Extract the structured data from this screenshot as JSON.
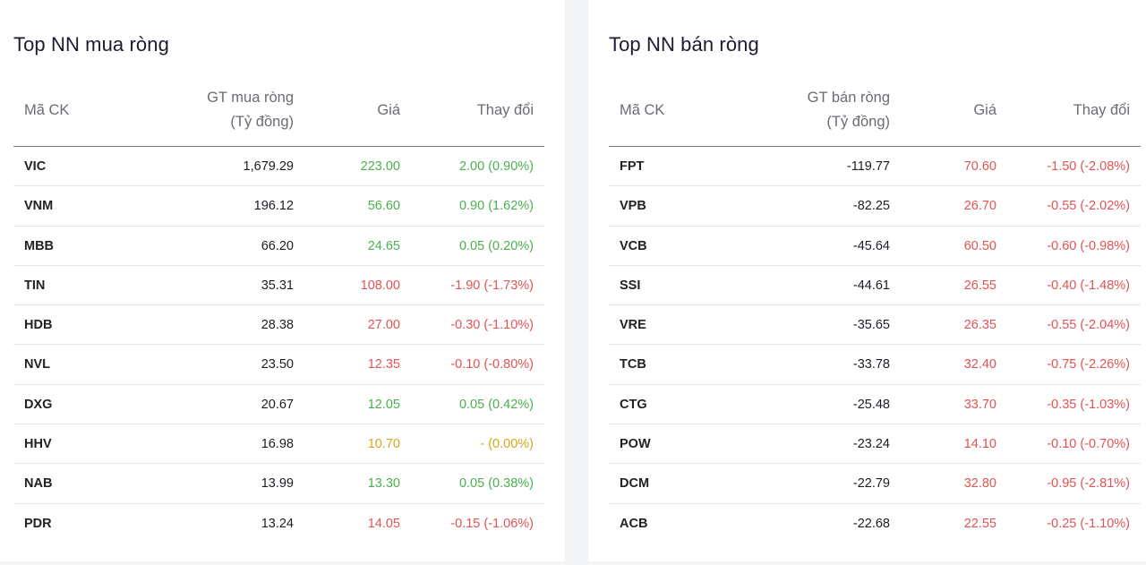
{
  "colors": {
    "up": "#4caf50",
    "down": "#e25353",
    "ref": "#d4a81a"
  },
  "buy": {
    "title": "Top NN mua ròng",
    "headers": {
      "code": "Mã CK",
      "value": "GT mua ròng\n(Tỷ đồng)",
      "price": "Giá",
      "change": "Thay đổi"
    },
    "rows": [
      {
        "code": "VIC",
        "value": "1,679.29",
        "price": "223.00",
        "change": "2.00 (0.90%)",
        "trend": "up"
      },
      {
        "code": "VNM",
        "value": "196.12",
        "price": "56.60",
        "change": "0.90 (1.62%)",
        "trend": "up"
      },
      {
        "code": "MBB",
        "value": "66.20",
        "price": "24.65",
        "change": "0.05 (0.20%)",
        "trend": "up"
      },
      {
        "code": "TIN",
        "value": "35.31",
        "price": "108.00",
        "change": "-1.90 (-1.73%)",
        "trend": "down"
      },
      {
        "code": "HDB",
        "value": "28.38",
        "price": "27.00",
        "change": "-0.30 (-1.10%)",
        "trend": "down"
      },
      {
        "code": "NVL",
        "value": "23.50",
        "price": "12.35",
        "change": "-0.10 (-0.80%)",
        "trend": "down"
      },
      {
        "code": "DXG",
        "value": "20.67",
        "price": "12.05",
        "change": "0.05 (0.42%)",
        "trend": "up"
      },
      {
        "code": "HHV",
        "value": "16.98",
        "price": "10.70",
        "change": "- (0.00%)",
        "trend": "ref"
      },
      {
        "code": "NAB",
        "value": "13.99",
        "price": "13.30",
        "change": "0.05 (0.38%)",
        "trend": "up"
      },
      {
        "code": "PDR",
        "value": "13.24",
        "price": "14.05",
        "change": "-0.15 (-1.06%)",
        "trend": "down"
      }
    ]
  },
  "sell": {
    "title": "Top NN bán ròng",
    "headers": {
      "code": "Mã CK",
      "value": "GT bán ròng\n(Tỷ đồng)",
      "price": "Giá",
      "change": "Thay đổi"
    },
    "rows": [
      {
        "code": "FPT",
        "value": "-119.77",
        "price": "70.60",
        "change": "-1.50 (-2.08%)",
        "trend": "down"
      },
      {
        "code": "VPB",
        "value": "-82.25",
        "price": "26.70",
        "change": "-0.55 (-2.02%)",
        "trend": "down"
      },
      {
        "code": "VCB",
        "value": "-45.64",
        "price": "60.50",
        "change": "-0.60 (-0.98%)",
        "trend": "down"
      },
      {
        "code": "SSI",
        "value": "-44.61",
        "price": "26.55",
        "change": "-0.40 (-1.48%)",
        "trend": "down"
      },
      {
        "code": "VRE",
        "value": "-35.65",
        "price": "26.35",
        "change": "-0.55 (-2.04%)",
        "trend": "down"
      },
      {
        "code": "TCB",
        "value": "-33.78",
        "price": "32.40",
        "change": "-0.75 (-2.26%)",
        "trend": "down"
      },
      {
        "code": "CTG",
        "value": "-25.48",
        "price": "33.70",
        "change": "-0.35 (-1.03%)",
        "trend": "down"
      },
      {
        "code": "POW",
        "value": "-23.24",
        "price": "14.10",
        "change": "-0.10 (-0.70%)",
        "trend": "down"
      },
      {
        "code": "DCM",
        "value": "-22.79",
        "price": "32.80",
        "change": "-0.95 (-2.81%)",
        "trend": "down"
      },
      {
        "code": "ACB",
        "value": "-22.68",
        "price": "22.55",
        "change": "-0.25 (-1.10%)",
        "trend": "down"
      }
    ]
  }
}
